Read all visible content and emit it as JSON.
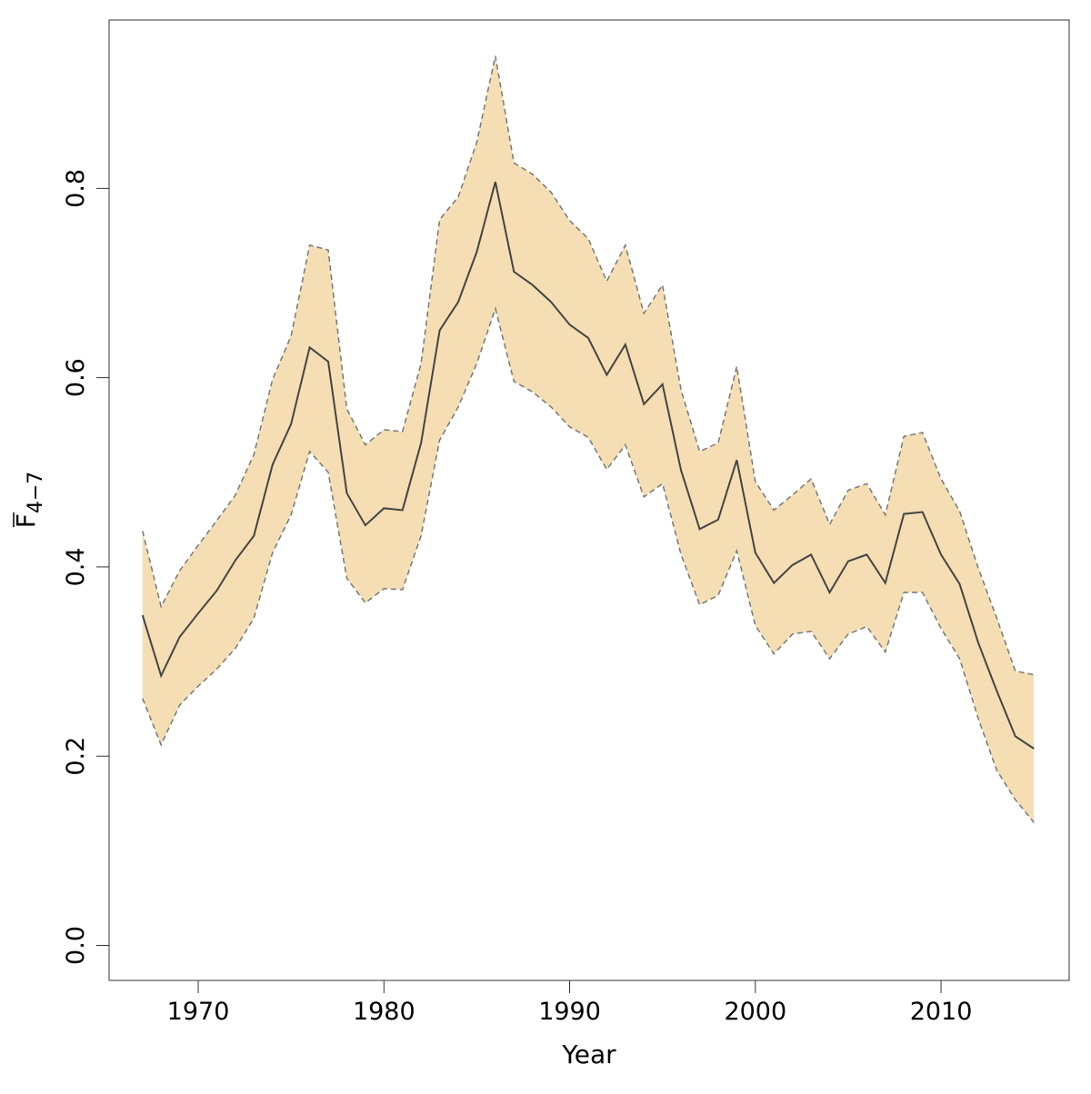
{
  "chart_data": {
    "type": "line",
    "title": "",
    "xlabel": "Year",
    "ylabel_main": "F",
    "ylabel_sub": "4−7",
    "xlim": [
      1965.2,
      2016.9
    ],
    "ylim": [
      -0.037,
      0.978
    ],
    "xticks": [
      1970,
      1980,
      1990,
      2000,
      2010
    ],
    "xtick_labels": [
      "1970",
      "1980",
      "1990",
      "2000",
      "2010"
    ],
    "yticks": [
      0.0,
      0.2,
      0.4,
      0.6,
      0.8
    ],
    "ytick_labels": [
      "0.0",
      "0.2",
      "0.4",
      "0.6",
      "0.8"
    ],
    "grid": false,
    "colors": {
      "band": "#F5DEB3",
      "line": "#444444",
      "bound": "#777777",
      "axis": "#333333"
    },
    "x": [
      1967,
      1968,
      1969,
      1970,
      1971,
      1972,
      1973,
      1974,
      1975,
      1976,
      1977,
      1978,
      1979,
      1980,
      1981,
      1982,
      1983,
      1984,
      1985,
      1986,
      1987,
      1988,
      1989,
      1990,
      1991,
      1992,
      1993,
      1994,
      1995,
      1996,
      1997,
      1998,
      1999,
      2000,
      2001,
      2002,
      2003,
      2004,
      2005,
      2006,
      2007,
      2008,
      2009,
      2010,
      2011,
      2012,
      2013,
      2014,
      2015
    ],
    "series": [
      {
        "name": "estimate",
        "values": [
          0.349,
          0.285,
          0.326,
          0.351,
          0.375,
          0.407,
          0.433,
          0.508,
          0.551,
          0.632,
          0.617,
          0.478,
          0.444,
          0.462,
          0.46,
          0.531,
          0.65,
          0.68,
          0.733,
          0.807,
          0.712,
          0.698,
          0.68,
          0.656,
          0.642,
          0.603,
          0.635,
          0.572,
          0.593,
          0.502,
          0.44,
          0.45,
          0.513,
          0.415,
          0.383,
          0.402,
          0.413,
          0.373,
          0.406,
          0.413,
          0.383,
          0.456,
          0.458,
          0.413,
          0.382,
          0.32,
          0.269,
          0.221,
          0.208
        ]
      },
      {
        "name": "upper",
        "values": [
          0.438,
          0.358,
          0.396,
          0.423,
          0.449,
          0.476,
          0.519,
          0.598,
          0.644,
          0.74,
          0.735,
          0.567,
          0.529,
          0.545,
          0.543,
          0.615,
          0.767,
          0.791,
          0.849,
          0.94,
          0.827,
          0.815,
          0.796,
          0.766,
          0.747,
          0.702,
          0.74,
          0.668,
          0.698,
          0.587,
          0.522,
          0.531,
          0.612,
          0.49,
          0.46,
          0.476,
          0.493,
          0.445,
          0.481,
          0.488,
          0.455,
          0.538,
          0.542,
          0.493,
          0.459,
          0.399,
          0.346,
          0.29,
          0.286
        ]
      },
      {
        "name": "lower",
        "values": [
          0.261,
          0.212,
          0.254,
          0.274,
          0.292,
          0.314,
          0.346,
          0.415,
          0.455,
          0.522,
          0.5,
          0.388,
          0.362,
          0.377,
          0.376,
          0.433,
          0.534,
          0.569,
          0.615,
          0.673,
          0.596,
          0.585,
          0.569,
          0.548,
          0.537,
          0.503,
          0.529,
          0.474,
          0.488,
          0.413,
          0.36,
          0.37,
          0.417,
          0.338,
          0.308,
          0.329,
          0.332,
          0.303,
          0.329,
          0.337,
          0.31,
          0.373,
          0.373,
          0.335,
          0.303,
          0.24,
          0.185,
          0.154,
          0.13
        ]
      }
    ]
  }
}
